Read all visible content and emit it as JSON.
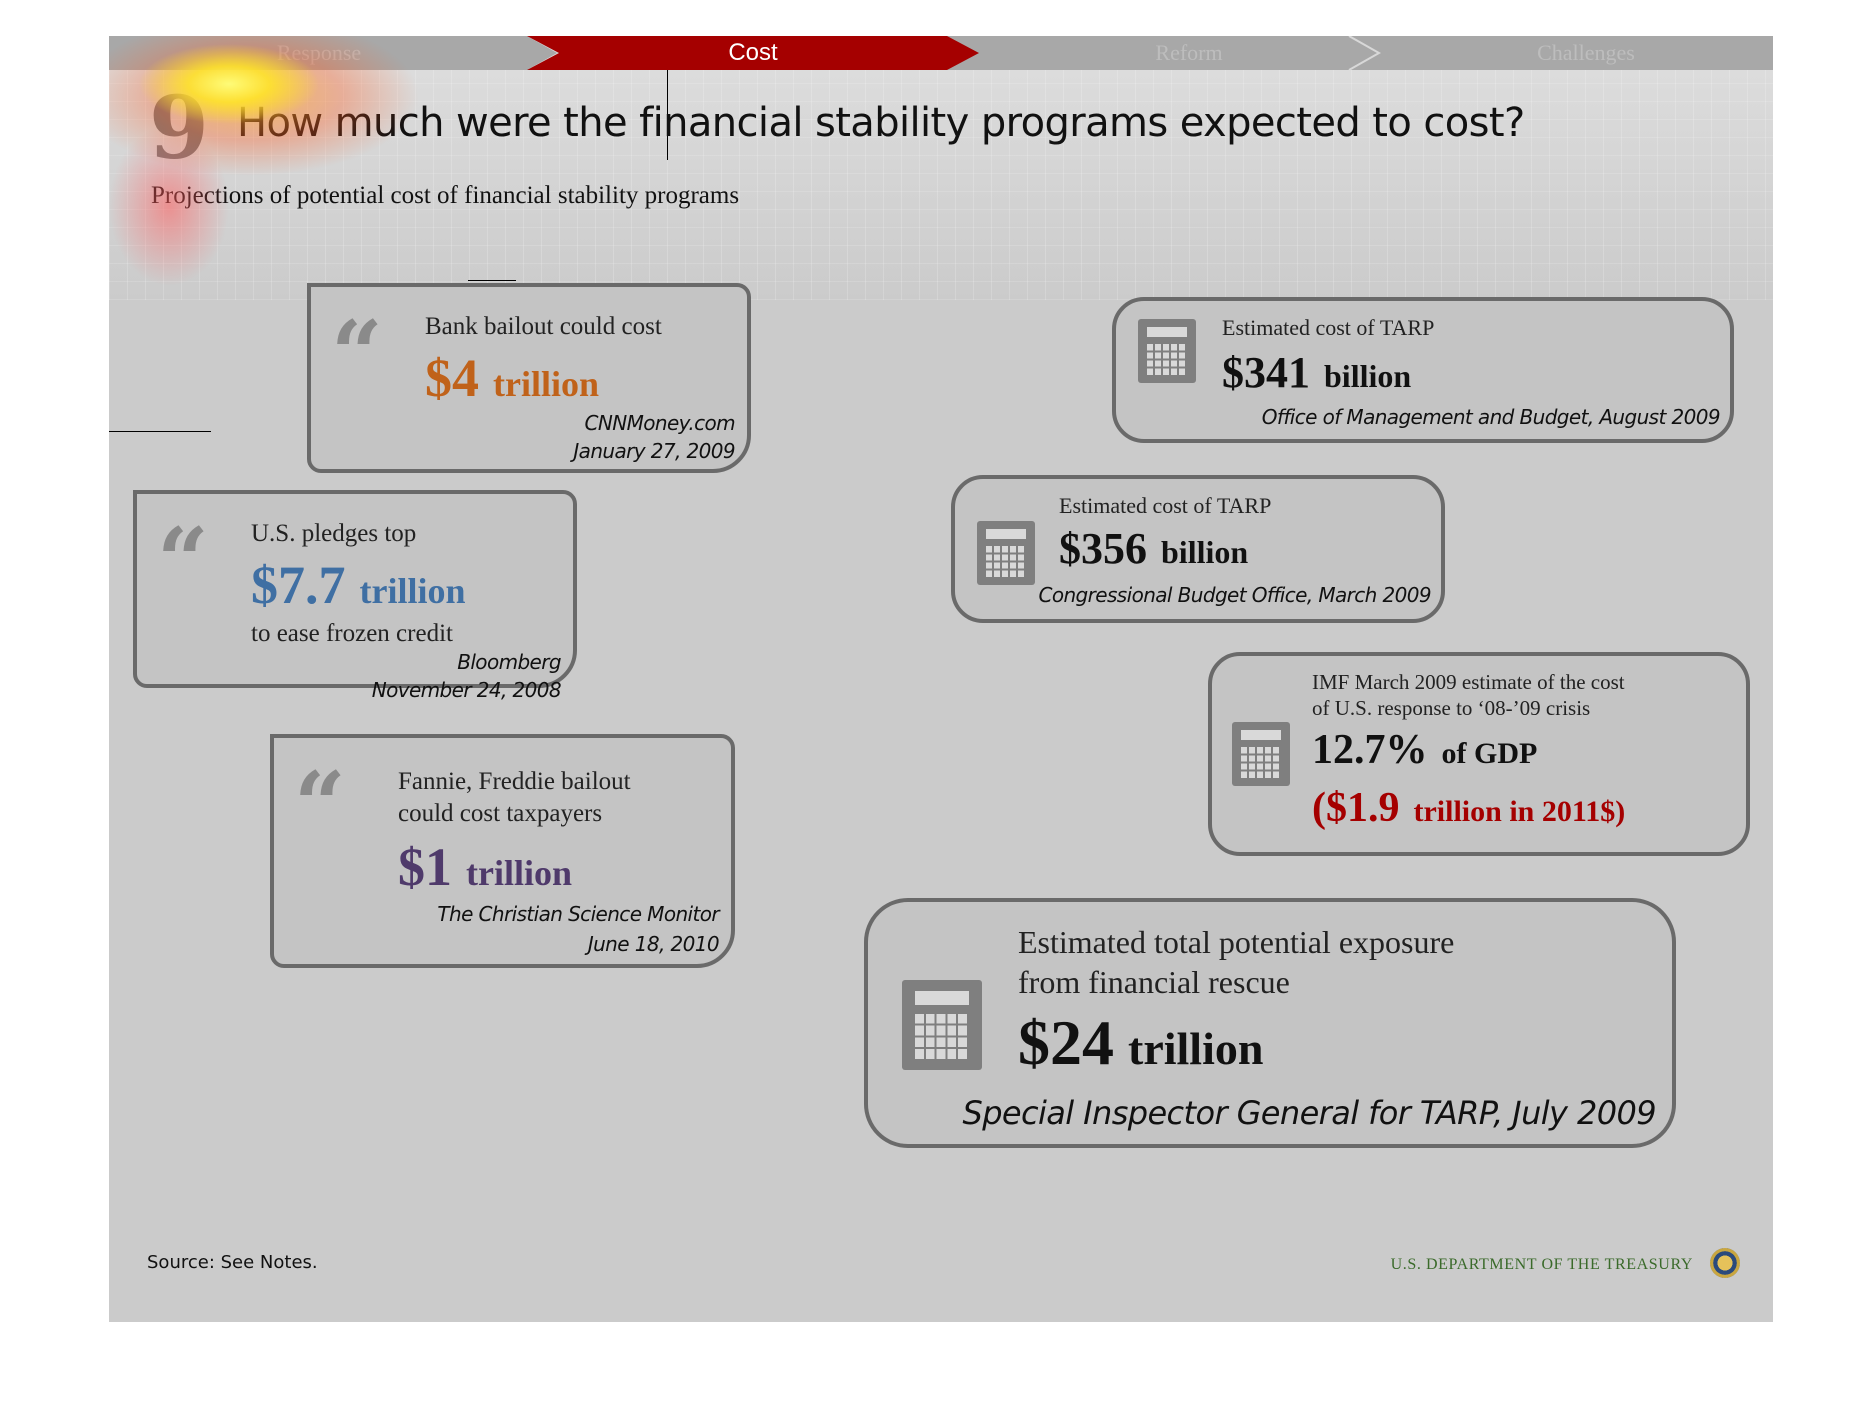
{
  "nav": {
    "tabs": [
      {
        "label": "Response"
      },
      {
        "label": "Cost"
      },
      {
        "label": "Reform"
      },
      {
        "label": "Challenges"
      }
    ]
  },
  "header": {
    "question_number": "9",
    "title": "How much were the financial stability programs expected to cost?",
    "subtitle": "Projections of potential cost of financial stability programs"
  },
  "quotes": [
    {
      "headline": "Bank bailout could cost",
      "amount": "$4",
      "unit": "trillion",
      "extra": "",
      "source": "CNNMoney.com",
      "date": "January 27, 2009",
      "color": "#c0621a"
    },
    {
      "headline": "U.S. pledges top",
      "amount": "$7.7",
      "unit": "trillion",
      "extra": "to ease frozen credit",
      "source": "Bloomberg",
      "date": "November 24, 2008",
      "color": "#3f6fa3"
    },
    {
      "headline_line1": "Fannie, Freddie bailout",
      "headline_line2": "could cost taxpayers",
      "amount": "$1",
      "unit": "trillion",
      "source": "The Christian Science Monitor",
      "date": "June 18, 2010",
      "color": "#4f3a6b"
    }
  ],
  "estimates": [
    {
      "label": "Estimated cost of TARP",
      "amount": "$341",
      "unit": "billion",
      "source": "Office of Management and Budget, August 2009"
    },
    {
      "label": "Estimated cost of TARP",
      "amount": "$356",
      "unit": "billion",
      "source": "Congressional Budget Office, March 2009"
    },
    {
      "label_line1": "IMF March 2009 estimate of the cost",
      "label_line2": "of U.S. response to ‘08-’09 crisis",
      "amount": "12.7%",
      "unit": "of GDP",
      "amount2": "($1.9",
      "unit2": "trillion in 2011$)",
      "color2": "#a50000"
    },
    {
      "label_line1": "Estimated total potential exposure",
      "label_line2": "from financial rescue",
      "amount": "$24",
      "unit": "trillion",
      "source": "Special Inspector General for TARP, July 2009"
    }
  ],
  "footer": {
    "source_note": "Source: See Notes.",
    "agency": "U.S. DEPARTMENT OF THE TREASURY"
  },
  "icons": [
    "quote-icon",
    "calculator-icon",
    "treasury-seal-icon"
  ]
}
